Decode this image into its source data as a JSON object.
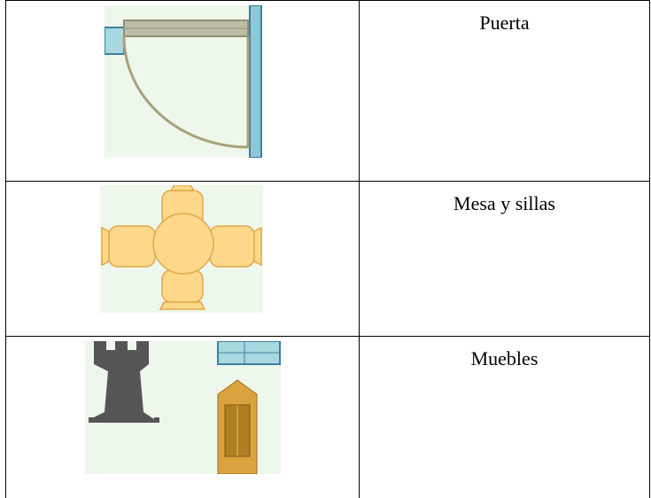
{
  "table": {
    "rows": [
      "Puerta",
      "Mesa y sillas",
      "Muebles"
    ]
  }
}
